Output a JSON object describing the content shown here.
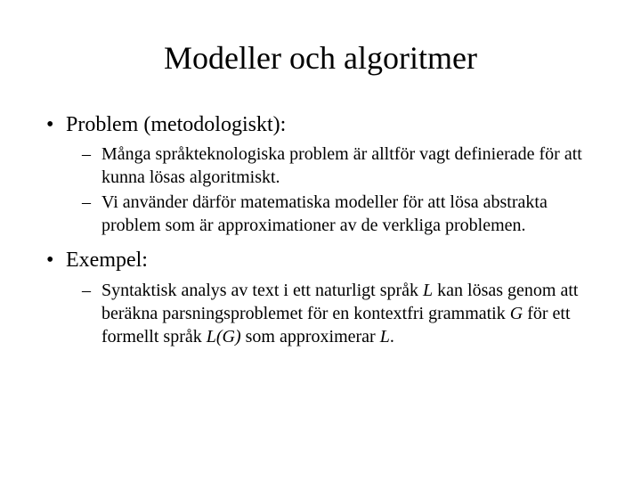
{
  "title": "Modeller och algoritmer",
  "bullets": {
    "b1": {
      "text": "Problem (metodologiskt):",
      "sub": {
        "s1": "Många språkteknologiska problem är alltför vagt definierade för att kunna lösas algoritmiskt.",
        "s2": "Vi använder därför matematiska modeller för att lösa abstrakta problem som är approximationer av de verkliga problemen."
      }
    },
    "b2": {
      "text": "Exempel:",
      "sub": {
        "s1_pre": "Syntaktisk analys av text i ett naturligt språk ",
        "s1_L1": "L",
        "s1_mid1": " kan lösas genom att beräkna parsningsproblemet för en kontextfri grammatik ",
        "s1_G": "G",
        "s1_mid2": " för ett formellt språk ",
        "s1_LG": "L(G)",
        "s1_mid3": " som approximerar ",
        "s1_L2": "L",
        "s1_end": "."
      }
    }
  }
}
